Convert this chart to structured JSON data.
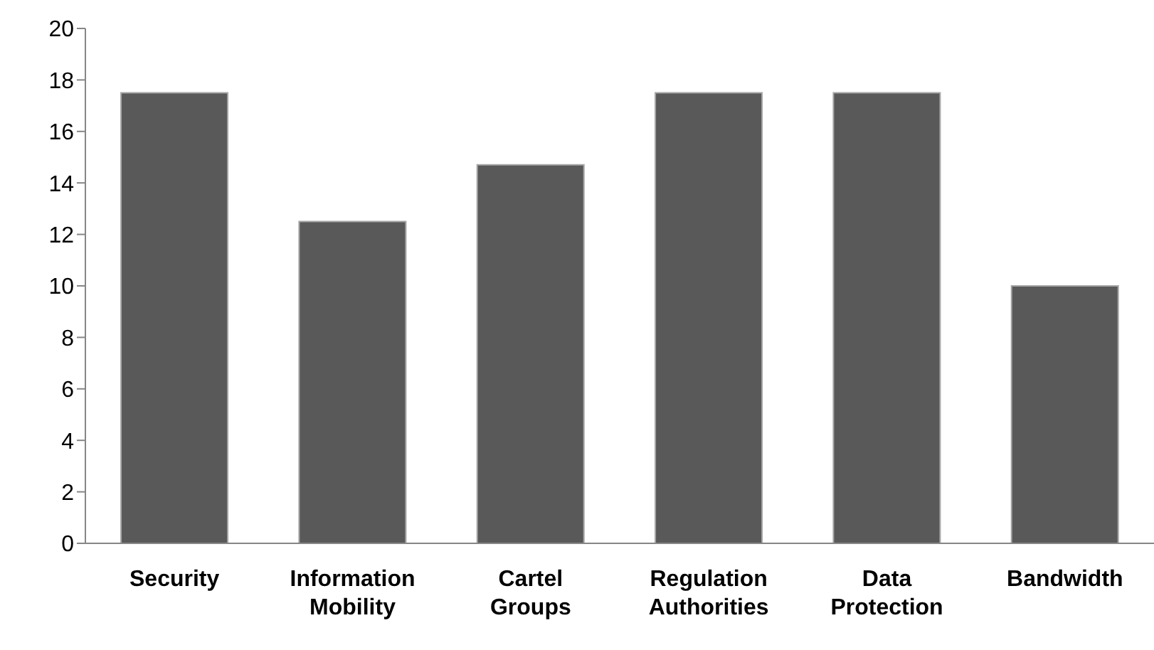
{
  "chart_data": {
    "type": "bar",
    "categories": [
      "Security",
      "Information Mobility",
      "Cartel Groups",
      "Regulation Authorities",
      "Data Protection",
      "Bandwidth"
    ],
    "values": [
      17.5,
      12.5,
      14.7,
      17.5,
      17.5,
      10
    ],
    "color": "#595959",
    "ylim": [
      0,
      20
    ],
    "yticks": [
      0,
      2,
      4,
      6,
      8,
      10,
      12,
      14,
      16,
      18,
      20
    ],
    "grid": false,
    "legend": false
  }
}
